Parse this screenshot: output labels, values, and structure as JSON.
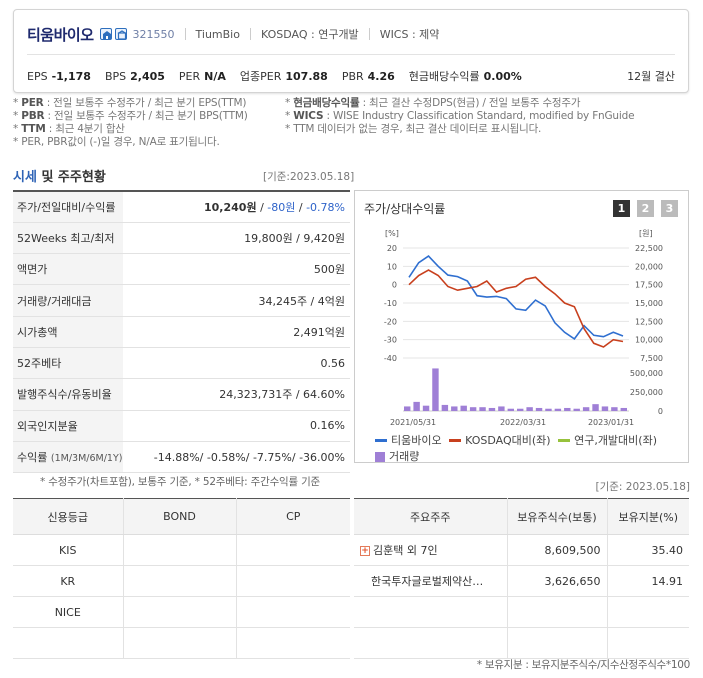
{
  "company": {
    "name": "티움바이오",
    "code": "321550",
    "english_name": "TiumBio",
    "market": "KOSDAQ : 연구개발",
    "wics": "WICS : 제약",
    "icons": [
      "building-icon",
      "building-alt-icon"
    ]
  },
  "metrics": [
    {
      "label": "EPS",
      "value": "-1,178"
    },
    {
      "label": "BPS",
      "value": "2,405"
    },
    {
      "label": "PER",
      "value": "N/A"
    },
    {
      "label": "업종PER",
      "value": "107.88"
    },
    {
      "label": "PBR",
      "value": "4.26"
    },
    {
      "label": "현금배당수익률",
      "value": "0.00%"
    }
  ],
  "fiscal": "12월 결산",
  "notes": {
    "row1_left_label": "PER",
    "row1_left_text": ": 전일 보통주 수정주가 / 최근 분기 EPS(TTM)",
    "row1_right_label": "현금배당수익률",
    "row1_right_text": ": 최근 결산 수정DPS(현금) / 전일 보통주 수정주가",
    "row2_left_label": "PBR",
    "row2_left_text": ": 전일 보통주 수정주가 / 최근 분기 BPS(TTM)",
    "row2_right_label": "WICS",
    "row2_right_text": ": WISE Industry Classification Standard, modified by FnGuide",
    "row3_left_label": "TTM",
    "row3_left_text": ": 최근 4분기 합산",
    "row3_right_text": "* TTM 데이터가 없는 경우, 최근 결산 데이터로 표시됩니다.",
    "row4_text": "* PER, PBR값이 (-)일 경우, N/A로 표기됩니다."
  },
  "section": {
    "title_blue": "시세",
    "title_rest": " 및 주주현황",
    "date": "[기준:2023.05.18]"
  },
  "market_table": {
    "rows": [
      {
        "label": "주가/전일대비/수익률",
        "price": "10,240원",
        "sep1": " / ",
        "change": "-80원",
        "sep2": " / ",
        "rate": "-0.78%"
      },
      {
        "label": "52Weeks 최고/최저",
        "value": "19,800원 / 9,420원"
      },
      {
        "label": "액면가",
        "value": "500원"
      },
      {
        "label": "거래량/거래대금",
        "value": "34,245주 / 4억원"
      },
      {
        "label": "시가총액",
        "value": "2,491억원"
      },
      {
        "label": "52주베타",
        "value": "0.56"
      },
      {
        "label": "발행주식수/유동비율",
        "value": "24,323,731주 / 64.60%"
      },
      {
        "label": "외국인지분율",
        "value": "0.16%"
      },
      {
        "label": "수익률",
        "label_small": "(1M/3M/6M/1Y)",
        "value": "-14.88%/ -0.58%/ -7.75%/ -36.00%"
      }
    ],
    "note": "* 수정주가(차트포함), 보통주 기준, * 52주베타: 주간수익률 기준"
  },
  "chart_title": "주가/상대수익률",
  "period_buttons": [
    "1",
    "2",
    "3"
  ],
  "chart_data": {
    "type": "line",
    "x_labels": [
      "2021/05/31",
      "2022/03/31",
      "2023/01/31"
    ],
    "left_axis_unit": "[%]",
    "right_axis_unit": "[원]",
    "left_ticks": [
      "20",
      "10",
      "0",
      "-10",
      "-20",
      "-30",
      "-40"
    ],
    "right_ticks": [
      "22,500",
      "20,000",
      "17,500",
      "15,000",
      "12,500",
      "10,000",
      "7,500"
    ],
    "volume_ticks": [
      "500,000",
      "250,000",
      "0"
    ],
    "ylim_left": [
      -40,
      20
    ],
    "ylim_right": [
      7500,
      22500
    ],
    "series": [
      {
        "name": "티움바이오",
        "color": "#2f6fd0",
        "axis": "right",
        "values": [
          18500,
          20500,
          21400,
          20000,
          18800,
          18600,
          18000,
          16000,
          15800,
          15900,
          15600,
          14200,
          14000,
          15400,
          14600,
          12300,
          11000,
          10100,
          11900,
          10600,
          10400,
          11000,
          10500
        ]
      },
      {
        "name": "KOSDAQ대비(좌)",
        "color": "#c8401e",
        "axis": "left",
        "values": [
          0,
          5,
          8,
          5,
          -1,
          -3,
          -2,
          -1,
          2,
          -4,
          -2,
          -1,
          3,
          4,
          -1,
          -5,
          -10,
          -12,
          -24,
          -32,
          -34,
          -30,
          -31
        ]
      },
      {
        "name": "연구,개발대비(좌)",
        "color": "#97c23c",
        "axis": "left",
        "values": []
      }
    ],
    "volume_series": {
      "name": "거래량",
      "color": "#9f7fd6",
      "values": [
        60000,
        120000,
        70000,
        560000,
        80000,
        60000,
        70000,
        50000,
        50000,
        40000,
        60000,
        30000,
        30000,
        50000,
        40000,
        30000,
        30000,
        40000,
        30000,
        50000,
        90000,
        60000,
        50000,
        40000
      ]
    }
  },
  "right_date": "[기준: 2023.05.18]",
  "credit_table": {
    "headers": [
      "신용등급",
      "BOND",
      "CP"
    ],
    "rows": [
      [
        "KIS",
        "",
        ""
      ],
      [
        "KR",
        "",
        ""
      ],
      [
        "NICE",
        "",
        ""
      ],
      [
        "",
        "",
        ""
      ]
    ]
  },
  "holders_table": {
    "headers": [
      "주요주주",
      "보유주식수(보통)",
      "보유지분(%)"
    ],
    "rows": [
      {
        "name": "김훈택 외 7인",
        "shares": "8,609,500",
        "ratio": "35.40",
        "expand": true
      },
      {
        "name": "한국투자글로벌제약산…",
        "shares": "3,626,650",
        "ratio": "14.91",
        "expand": false
      },
      {
        "name": "",
        "shares": "",
        "ratio": "",
        "expand": false
      },
      {
        "name": "",
        "shares": "",
        "ratio": "",
        "expand": false
      }
    ],
    "note": "* 보유지분 : 보유지분주식수/지수산정주식수*100"
  }
}
